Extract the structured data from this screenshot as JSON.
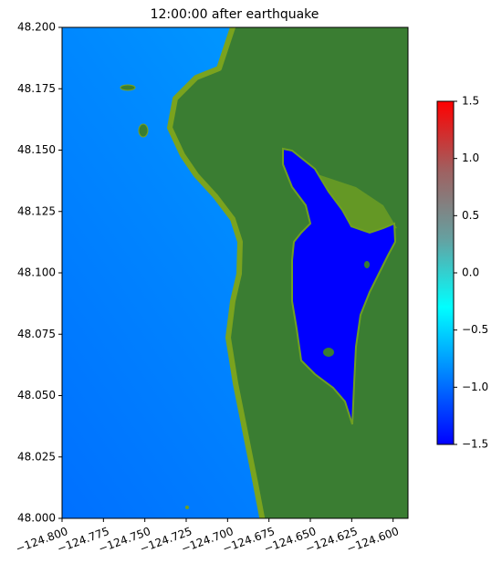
{
  "chart_data": {
    "type": "heatmap",
    "title": "12:00:00 after earthquake",
    "xlim": [
      -124.8,
      -124.591
    ],
    "ylim": [
      48.0,
      48.2
    ],
    "xticks": [
      {
        "value": -124.8,
        "label": "−124.800"
      },
      {
        "value": -124.775,
        "label": "−124.775"
      },
      {
        "value": -124.75,
        "label": "−124.750"
      },
      {
        "value": -124.725,
        "label": "−124.725"
      },
      {
        "value": -124.7,
        "label": "−124.700"
      },
      {
        "value": -124.675,
        "label": "−124.675"
      },
      {
        "value": -124.65,
        "label": "−124.650"
      },
      {
        "value": -124.625,
        "label": "−124.625"
      },
      {
        "value": -124.6,
        "label": "−124.600"
      }
    ],
    "yticks": [
      {
        "value": 48.0,
        "label": "48.000"
      },
      {
        "value": 48.025,
        "label": "48.025"
      },
      {
        "value": 48.05,
        "label": "48.050"
      },
      {
        "value": 48.075,
        "label": "48.075"
      },
      {
        "value": 48.1,
        "label": "48.100"
      },
      {
        "value": 48.125,
        "label": "48.125"
      },
      {
        "value": 48.15,
        "label": "48.150"
      },
      {
        "value": 48.175,
        "label": "48.175"
      },
      {
        "value": 48.2,
        "label": "48.200"
      }
    ],
    "colorbar": {
      "clim": [
        -1.5,
        1.5
      ],
      "colors": [
        "#0000ff",
        "#0080ff",
        "#00ffff",
        "#66a0a0",
        "#a06060",
        "#ff0000"
      ],
      "ticks": [
        {
          "value": 1.5,
          "label": "1.5"
        },
        {
          "value": 1.0,
          "label": "1.0"
        },
        {
          "value": 0.5,
          "label": "0.5"
        },
        {
          "value": 0.0,
          "label": "0.0"
        },
        {
          "value": -0.5,
          "label": "−0.5"
        },
        {
          "value": -1.0,
          "label": "−1.0"
        },
        {
          "value": -1.5,
          "label": "−1.5"
        }
      ]
    }
  }
}
